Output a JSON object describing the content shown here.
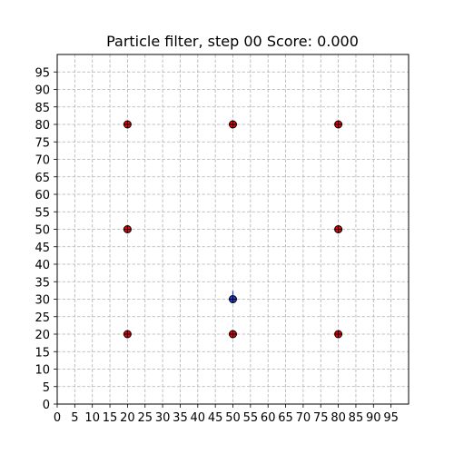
{
  "chart_data": {
    "type": "scatter",
    "title": "Particle filter, step 00 Score: 0.000",
    "xlabel": "",
    "ylabel": "",
    "xlim": [
      0,
      100
    ],
    "ylim": [
      0,
      100
    ],
    "x_ticks": [
      0,
      5,
      10,
      15,
      20,
      25,
      30,
      35,
      40,
      45,
      50,
      55,
      60,
      65,
      70,
      75,
      80,
      85,
      90,
      95
    ],
    "y_ticks": [
      0,
      5,
      10,
      15,
      20,
      25,
      30,
      35,
      40,
      45,
      50,
      55,
      60,
      65,
      70,
      75,
      80,
      85,
      90,
      95
    ],
    "grid": true,
    "series": [
      {
        "color": "#e8000b",
        "edge_color": "#000000",
        "points": [
          {
            "x": 20,
            "y": 80
          },
          {
            "x": 50,
            "y": 80
          },
          {
            "x": 80,
            "y": 80
          },
          {
            "x": 20,
            "y": 50
          },
          {
            "x": 80,
            "y": 50
          },
          {
            "x": 20,
            "y": 20
          },
          {
            "x": 50,
            "y": 20
          },
          {
            "x": 80,
            "y": 20
          }
        ]
      },
      {
        "color": "#1f3fd8",
        "edge_color": "#000000",
        "points": [
          {
            "x": 50,
            "y": 30
          }
        ]
      }
    ]
  }
}
